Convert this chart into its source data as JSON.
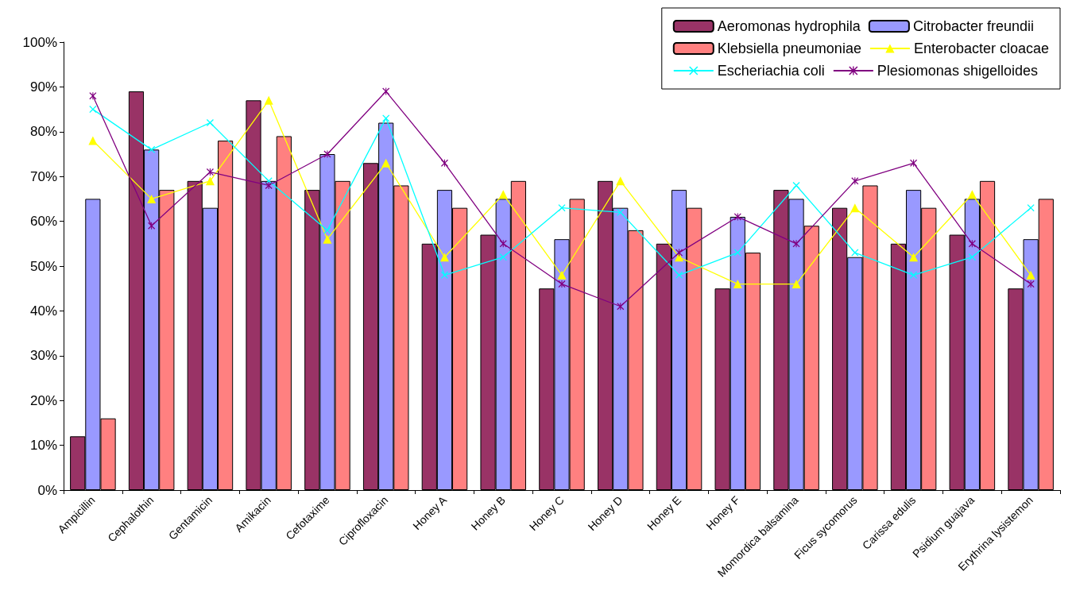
{
  "chart_data": {
    "type": "bar",
    "categories": [
      "Ampicillin",
      "Cephalothin",
      "Gentamicin",
      "Amikacin",
      "Cefotaxime",
      "Ciprofloxacin",
      "Honey A",
      "Honey B",
      "Honey C",
      "Honey D",
      "Honey E",
      "Honey F",
      "Momordica balsamina",
      "Ficus sycomorus",
      "Carissa edulis",
      "Psidium guajava",
      "Erythrina lysistemon"
    ],
    "ylim": [
      0,
      100
    ],
    "yticks": [
      {
        "value": 0,
        "label": "0%"
      },
      {
        "value": 10,
        "label": "10%"
      },
      {
        "value": 20,
        "label": "20%"
      },
      {
        "value": 30,
        "label": "30%"
      },
      {
        "value": 40,
        "label": "40%"
      },
      {
        "value": 50,
        "label": "50%"
      },
      {
        "value": 60,
        "label": "60%"
      },
      {
        "value": 70,
        "label": "70%"
      },
      {
        "value": 80,
        "label": "80%"
      },
      {
        "value": 90,
        "label": "90%"
      },
      {
        "value": 100,
        "label": "100%"
      }
    ],
    "legend": "top right",
    "series": [
      {
        "name": "Aeromonas hydrophila",
        "color": "#993366",
        "values": [
          12,
          89,
          69,
          87,
          67,
          73,
          55,
          57,
          45,
          69,
          55,
          45,
          67,
          63,
          55,
          57,
          45
        ]
      },
      {
        "name": "Citrobacter freundii",
        "color": "#9999ff",
        "values": [
          65,
          76,
          63,
          69,
          75,
          82,
          67,
          65,
          56,
          63,
          67,
          61,
          65,
          52,
          67,
          65,
          56
        ]
      },
      {
        "name": "Klebsiella pneumoniae",
        "color": "#ff8080",
        "values": [
          16,
          67,
          78,
          79,
          69,
          68,
          63,
          69,
          65,
          58,
          63,
          53,
          59,
          68,
          63,
          69,
          65
        ]
      },
      {
        "name": "Enterobacter cloacae",
        "type": "line",
        "marker": "triangle",
        "color": "#ffff00",
        "values": [
          78,
          65,
          69,
          87,
          56,
          73,
          52,
          66,
          48,
          69,
          52,
          46,
          46,
          63,
          52,
          66,
          48
        ]
      },
      {
        "name": "Escheriachia coli",
        "type": "line",
        "marker": "cross",
        "color": "#00ffff",
        "values": [
          85,
          76,
          82,
          69,
          58,
          83,
          48,
          52,
          63,
          62,
          48,
          53,
          68,
          53,
          48,
          52,
          63
        ]
      },
      {
        "name": "Plesiomonas shigelloides",
        "type": "line",
        "marker": "star",
        "color": "#800080",
        "values": [
          88,
          59,
          71,
          68,
          75,
          89,
          73,
          55,
          46,
          41,
          53,
          61,
          55,
          69,
          73,
          55,
          46
        ]
      }
    ]
  }
}
